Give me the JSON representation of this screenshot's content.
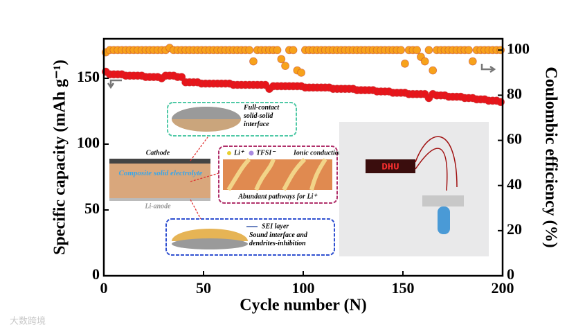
{
  "chart_data": {
    "type": "scatter",
    "xlabel": "Cycle number (N)",
    "ylabel": "Specific capacity (mAh g⁻¹)",
    "y2label": "Coulombic efficiency (%)",
    "xlim": [
      0,
      200
    ],
    "xticks": [
      0,
      50,
      100,
      150,
      200
    ],
    "ylim": [
      0,
      180
    ],
    "yticks": [
      0,
      50,
      100,
      150
    ],
    "y2lim": [
      0,
      105
    ],
    "y2ticks": [
      0,
      20,
      40,
      60,
      80,
      100
    ],
    "x": [
      1,
      3,
      5,
      7,
      9,
      11,
      13,
      15,
      17,
      19,
      21,
      23,
      25,
      27,
      29,
      31,
      33,
      35,
      37,
      39,
      41,
      43,
      45,
      47,
      49,
      51,
      53,
      55,
      57,
      59,
      61,
      63,
      65,
      67,
      69,
      71,
      73,
      75,
      77,
      79,
      81,
      83,
      85,
      87,
      89,
      91,
      93,
      95,
      97,
      99,
      101,
      103,
      105,
      107,
      109,
      111,
      113,
      115,
      117,
      119,
      121,
      123,
      125,
      127,
      129,
      131,
      133,
      135,
      137,
      139,
      141,
      143,
      145,
      147,
      149,
      151,
      153,
      155,
      157,
      159,
      161,
      163,
      165,
      167,
      169,
      171,
      173,
      175,
      177,
      179,
      181,
      183,
      185,
      187,
      189,
      191,
      193,
      195,
      197,
      199
    ],
    "series": [
      {
        "name": "Specific capacity",
        "color": "#e8141a",
        "axis": "y",
        "values": [
          155,
          153,
          153,
          153,
          153,
          152,
          152,
          152,
          152,
          152,
          151,
          151,
          151,
          151,
          150,
          152,
          152,
          152,
          151,
          151,
          147,
          147,
          147,
          147,
          146,
          146,
          146,
          146,
          146,
          146,
          146,
          146,
          145,
          145,
          145,
          145,
          145,
          145,
          145,
          145,
          145,
          142,
          144,
          144,
          144,
          144,
          144,
          144,
          144,
          144,
          143,
          143,
          143,
          143,
          143,
          143,
          143,
          142,
          142,
          142,
          142,
          142,
          142,
          141,
          141,
          141,
          141,
          141,
          140,
          140,
          140,
          140,
          139,
          139,
          139,
          139,
          138,
          138,
          138,
          138,
          138,
          135,
          138,
          137,
          137,
          137,
          136,
          136,
          136,
          136,
          135,
          135,
          135,
          134,
          134,
          134,
          133,
          133,
          133,
          132
        ]
      },
      {
        "name": "Coulombic efficiency",
        "color": "#f7a21b",
        "axis": "y2",
        "values": [
          99,
          100,
          100,
          100,
          100,
          100,
          100,
          100,
          100,
          100,
          100,
          100,
          100,
          100,
          100,
          100,
          101,
          100,
          100,
          100,
          100,
          100,
          100,
          100,
          100,
          100,
          100,
          100,
          100,
          100,
          100,
          100,
          100,
          100,
          100,
          100,
          100,
          95,
          100,
          100,
          100,
          100,
          100,
          100,
          96,
          93,
          100,
          100,
          91,
          90,
          100,
          100,
          100,
          100,
          100,
          100,
          100,
          100,
          100,
          100,
          100,
          100,
          100,
          100,
          100,
          100,
          100,
          100,
          100,
          100,
          100,
          100,
          100,
          100,
          100,
          94,
          100,
          100,
          100,
          97,
          95,
          100,
          91,
          100,
          100,
          100,
          100,
          100,
          100,
          100,
          100,
          100,
          95,
          100,
          100,
          100,
          100,
          100,
          100,
          100
        ]
      }
    ]
  },
  "insets": {
    "interface_top": "Full-contact solid-solid interface",
    "cathode": "Cathode",
    "electrolyte": "Composite solid electrolyte",
    "anode": "Li-anode",
    "legend_li": "Li⁺",
    "legend_tfsi": "TFSI⁻",
    "legend_ionic": "Ionic conduction",
    "pathways": "Abundant pathways for Li⁺",
    "sei": "SEI layer",
    "interface_bottom": "Sound interface and dendrites-inhibition",
    "display": "DHU"
  },
  "watermark": "大数跨境"
}
